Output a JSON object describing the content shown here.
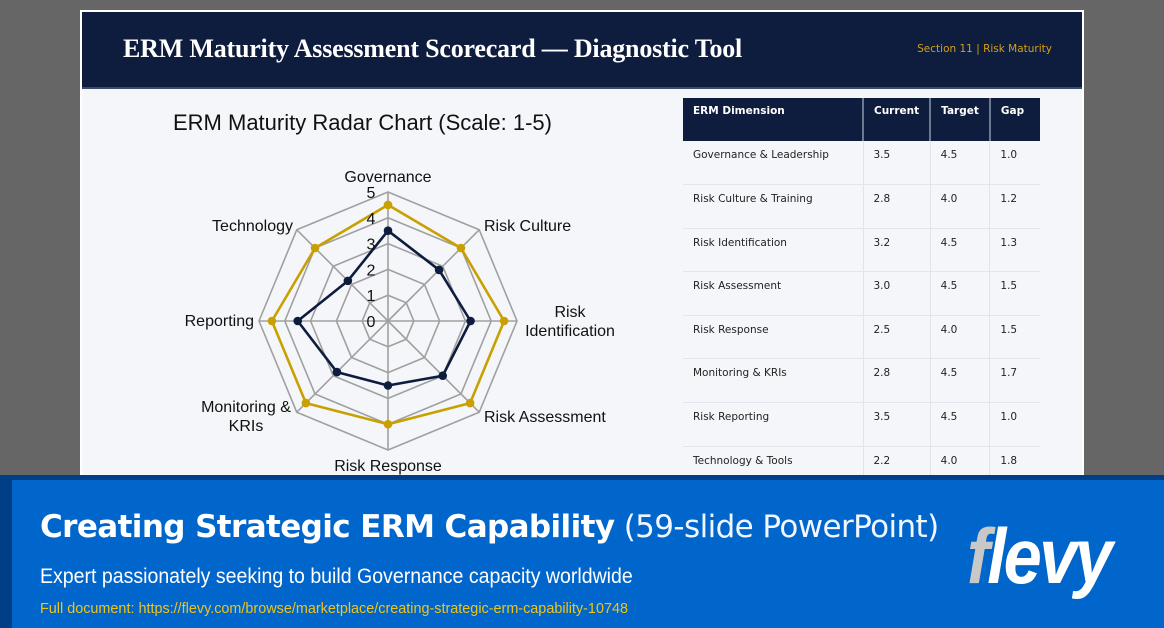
{
  "slide": {
    "title": "ERM Maturity Assessment Scorecard — Diagnostic Tool",
    "section_tag": "Section 11 | Risk Maturity"
  },
  "colors": {
    "header_bg": "#0e1c3d",
    "current_series": "#0e1c3d",
    "target_series": "#c9a000",
    "grid": "#a0a0a0",
    "banner_bg": "#0066cc",
    "link": "#f0c419"
  },
  "chart_data": {
    "type": "radar",
    "title": "ERM Maturity Radar Chart (Scale: 1-5)",
    "categories": [
      "Governance",
      "Risk Culture",
      "Risk Identification",
      "Risk Assessment",
      "Risk Response",
      "Monitoring & KRIs",
      "Reporting",
      "Technology"
    ],
    "axis_labels": [
      [
        "Governance"
      ],
      [
        "Risk Culture"
      ],
      [
        "Risk",
        "Identification"
      ],
      [
        "Risk Assessment"
      ],
      [
        "Risk Response"
      ],
      [
        "Monitoring &",
        "KRIs"
      ],
      [
        "Reporting"
      ],
      [
        "Technology"
      ]
    ],
    "series": [
      {
        "name": "Current",
        "color": "#0e1c3d",
        "values": [
          3.5,
          2.8,
          3.2,
          3.0,
          2.5,
          2.8,
          3.5,
          2.2
        ]
      },
      {
        "name": "Target",
        "color": "#c9a000",
        "values": [
          4.5,
          4.0,
          4.5,
          4.5,
          4.0,
          4.5,
          4.5,
          4.0
        ]
      }
    ],
    "rlim": [
      0,
      5
    ],
    "ticks": [
      "0",
      "1",
      "2",
      "3",
      "4",
      "5"
    ],
    "grid": true,
    "legend": "none"
  },
  "table": {
    "headers": [
      "ERM Dimension",
      "Current",
      "Target",
      "Gap"
    ],
    "rows": [
      [
        "Governance & Leadership",
        "3.5",
        "4.5",
        "1.0"
      ],
      [
        "Risk Culture & Training",
        "2.8",
        "4.0",
        "1.2"
      ],
      [
        "Risk Identification",
        "3.2",
        "4.5",
        "1.3"
      ],
      [
        "Risk Assessment",
        "3.0",
        "4.5",
        "1.5"
      ],
      [
        "Risk Response",
        "2.5",
        "4.0",
        "1.5"
      ],
      [
        "Monitoring & KRIs",
        "2.8",
        "4.5",
        "1.7"
      ],
      [
        "Risk Reporting",
        "3.5",
        "4.5",
        "1.0"
      ],
      [
        "Technology & Tools",
        "2.2",
        "4.0",
        "1.8"
      ]
    ]
  },
  "banner": {
    "title_bold": "Creating Strategic ERM Capability",
    "title_light": " (59-slide PowerPoint)",
    "subtitle": "Expert passionately  seeking to build Governance  capacity worldwide",
    "link": "Full document: https://flevy.com/browse/marketplace/creating-strategic-erm-capability-10748",
    "logo_first": "f",
    "logo_rest": "levy"
  }
}
